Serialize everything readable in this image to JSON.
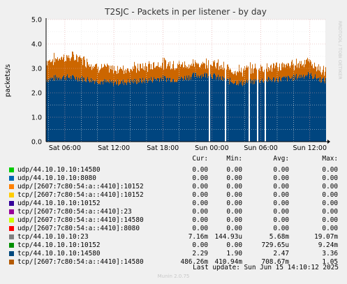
{
  "chart_data": {
    "type": "area",
    "title": "T2SJC - Packets in per listener - by day",
    "ylabel": "packets/s",
    "watermark": "RRDTOOL / TOBI OETIKER",
    "ylim": [
      0,
      5
    ],
    "yticks": [
      "0.0",
      "1.0",
      "2.0",
      "3.0",
      "4.0",
      "5.0"
    ],
    "xticks": [
      "Sat 06:00",
      "Sat 12:00",
      "Sat 18:00",
      "Sun 00:00",
      "Sun 06:00",
      "Sun 12:00"
    ],
    "x_hours": [
      0,
      2,
      4,
      6,
      8,
      10,
      12,
      14,
      16,
      18,
      20,
      22,
      24,
      26,
      28,
      30,
      32,
      34
    ],
    "stacked": true,
    "series": [
      {
        "name": "tcp/44.10.10.10:14580",
        "color": "#00457f",
        "values": [
          2.55,
          2.65,
          2.6,
          2.5,
          2.4,
          2.45,
          2.5,
          2.6,
          2.55,
          2.7,
          2.75,
          2.5,
          2.4,
          2.5,
          2.55,
          2.6,
          2.75,
          2.5
        ]
      },
      {
        "name": "tcp/[2607:7c80:54:a::4410]:14580",
        "color": "#cc6600",
        "values": [
          0.75,
          0.8,
          0.85,
          0.6,
          0.55,
          0.55,
          0.55,
          0.6,
          0.6,
          0.45,
          0.5,
          0.5,
          0.5,
          0.55,
          0.5,
          0.55,
          0.55,
          0.35
        ]
      }
    ],
    "gaps_hours": [
      17.7,
      19.6,
      22.5,
      23.6,
      24.5,
      33.2
    ],
    "grid": true
  },
  "legend": {
    "headers": {
      "cur": "Cur:",
      "min": "Min:",
      "avg": "Avg:",
      "max": "Max:"
    },
    "rows": [
      {
        "name": "udp/44.10.10.10:14580",
        "color": "#00cc00",
        "cur": "0.00",
        "min": "0.00",
        "avg": "0.00",
        "max": "0.00"
      },
      {
        "name": "udp/44.10.10.10:8080",
        "color": "#0066b3",
        "cur": "0.00",
        "min": "0.00",
        "avg": "0.00",
        "max": "0.00"
      },
      {
        "name": "udp/[2607:7c80:54:a::4410]:10152",
        "color": "#ff8000",
        "cur": "0.00",
        "min": "0.00",
        "avg": "0.00",
        "max": "0.00"
      },
      {
        "name": "tcp/[2607:7c80:54:a::4410]:10152",
        "color": "#ffcc00",
        "cur": "0.00",
        "min": "0.00",
        "avg": "0.00",
        "max": "0.00"
      },
      {
        "name": "udp/44.10.10.10:10152",
        "color": "#330099",
        "cur": "0.00",
        "min": "0.00",
        "avg": "0.00",
        "max": "0.00"
      },
      {
        "name": "tcp/[2607:7c80:54:a::4410]:23",
        "color": "#990099",
        "cur": "0.00",
        "min": "0.00",
        "avg": "0.00",
        "max": "0.00"
      },
      {
        "name": "udp/[2607:7c80:54:a::4410]:14580",
        "color": "#ccff00",
        "cur": "0.00",
        "min": "0.00",
        "avg": "0.00",
        "max": "0.00"
      },
      {
        "name": "udp/[2607:7c80:54:a::4410]:8080",
        "color": "#ff0000",
        "cur": "0.00",
        "min": "0.00",
        "avg": "0.00",
        "max": "0.00"
      },
      {
        "name": "tcp/44.10.10.10:23",
        "color": "#808080",
        "cur": "7.16m",
        "min": "144.93u",
        "avg": "5.68m",
        "max": "19.07m"
      },
      {
        "name": "tcp/44.10.10.10:10152",
        "color": "#008f00",
        "cur": "0.00",
        "min": "0.00",
        "avg": "729.65u",
        "max": "9.24m"
      },
      {
        "name": "tcp/44.10.10.10:14580",
        "color": "#00487d",
        "cur": "2.29",
        "min": "1.90",
        "avg": "2.47",
        "max": "3.36"
      },
      {
        "name": "tcp/[2607:7c80:54:a::4410]:14580",
        "color": "#b35a00",
        "cur": "486.26m",
        "min": "410.94m",
        "avg": "708.67m",
        "max": "1.05"
      }
    ]
  },
  "last_update": "Last update: Sun Jun 15 14:10:12 2025",
  "footer": "Munin 2.0.75"
}
